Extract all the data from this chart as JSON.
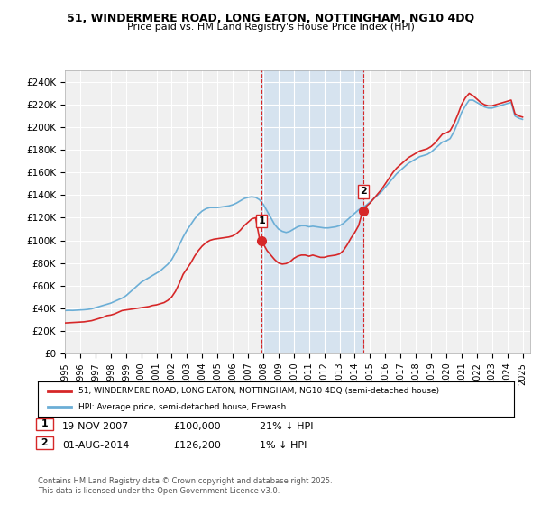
{
  "title_line1": "51, WINDERMERE ROAD, LONG EATON, NOTTINGHAM, NG10 4DQ",
  "title_line2": "Price paid vs. HM Land Registry's House Price Index (HPI)",
  "ylabel_ticks": [
    "£0",
    "£20K",
    "£40K",
    "£60K",
    "£80K",
    "£100K",
    "£120K",
    "£140K",
    "£160K",
    "£180K",
    "£200K",
    "£220K",
    "£240K"
  ],
  "ytick_values": [
    0,
    20000,
    40000,
    60000,
    80000,
    100000,
    120000,
    140000,
    160000,
    180000,
    200000,
    220000,
    240000
  ],
  "ylim": [
    0,
    250000
  ],
  "xlim_start": 1995.0,
  "xlim_end": 2025.5,
  "xtick_labels": [
    "1995",
    "1996",
    "1997",
    "1998",
    "1999",
    "2000",
    "2001",
    "2002",
    "2003",
    "2004",
    "2005",
    "2006",
    "2007",
    "2008",
    "2009",
    "2010",
    "2011",
    "2012",
    "2013",
    "2014",
    "2015",
    "2016",
    "2017",
    "2018",
    "2019",
    "2020",
    "2021",
    "2022",
    "2023",
    "2024",
    "2025"
  ],
  "marker1_x": 2007.89,
  "marker1_y": 100000,
  "marker1_label": "1",
  "marker1_date": "19-NOV-2007",
  "marker1_price": "£100,000",
  "marker1_hpi": "21% ↓ HPI",
  "marker2_x": 2014.58,
  "marker2_y": 126200,
  "marker2_label": "2",
  "marker2_date": "01-AUG-2014",
  "marker2_price": "£126,200",
  "marker2_hpi": "1% ↓ HPI",
  "hpi_color": "#6baed6",
  "price_color": "#d62728",
  "shaded_color": "#c6dbef",
  "legend_label_red": "51, WINDERMERE ROAD, LONG EATON, NOTTINGHAM, NG10 4DQ (semi-detached house)",
  "legend_label_blue": "HPI: Average price, semi-detached house, Erewash",
  "footnote": "Contains HM Land Registry data © Crown copyright and database right 2025.\nThis data is licensed under the Open Government Licence v3.0.",
  "background_color": "#ffffff",
  "plot_bg_color": "#f0f0f0",
  "hpi_data_x": [
    1995.0,
    1995.25,
    1995.5,
    1995.75,
    1996.0,
    1996.25,
    1996.5,
    1996.75,
    1997.0,
    1997.25,
    1997.5,
    1997.75,
    1998.0,
    1998.25,
    1998.5,
    1998.75,
    1999.0,
    1999.25,
    1999.5,
    1999.75,
    2000.0,
    2000.25,
    2000.5,
    2000.75,
    2001.0,
    2001.25,
    2001.5,
    2001.75,
    2002.0,
    2002.25,
    2002.5,
    2002.75,
    2003.0,
    2003.25,
    2003.5,
    2003.75,
    2004.0,
    2004.25,
    2004.5,
    2004.75,
    2005.0,
    2005.25,
    2005.5,
    2005.75,
    2006.0,
    2006.25,
    2006.5,
    2006.75,
    2007.0,
    2007.25,
    2007.5,
    2007.75,
    2008.0,
    2008.25,
    2008.5,
    2008.75,
    2009.0,
    2009.25,
    2009.5,
    2009.75,
    2010.0,
    2010.25,
    2010.5,
    2010.75,
    2011.0,
    2011.25,
    2011.5,
    2011.75,
    2012.0,
    2012.25,
    2012.5,
    2012.75,
    2013.0,
    2013.25,
    2013.5,
    2013.75,
    2014.0,
    2014.25,
    2014.5,
    2014.75,
    2015.0,
    2015.25,
    2015.5,
    2015.75,
    2016.0,
    2016.25,
    2016.5,
    2016.75,
    2017.0,
    2017.25,
    2017.5,
    2017.75,
    2018.0,
    2018.25,
    2018.5,
    2018.75,
    2019.0,
    2019.25,
    2019.5,
    2019.75,
    2020.0,
    2020.25,
    2020.5,
    2020.75,
    2021.0,
    2021.25,
    2021.5,
    2021.75,
    2022.0,
    2022.25,
    2022.5,
    2022.75,
    2023.0,
    2023.25,
    2023.5,
    2023.75,
    2024.0,
    2024.25,
    2024.5,
    2024.75,
    2025.0
  ],
  "hpi_data_y": [
    38000,
    38200,
    38100,
    38300,
    38500,
    38700,
    39000,
    39500,
    40500,
    41500,
    42500,
    43500,
    44500,
    46000,
    47500,
    49000,
    51000,
    54000,
    57000,
    60000,
    63000,
    65000,
    67000,
    69000,
    71000,
    73000,
    76000,
    79000,
    83000,
    89000,
    96000,
    103000,
    109000,
    114000,
    119000,
    123000,
    126000,
    128000,
    129000,
    129000,
    129000,
    129500,
    130000,
    130500,
    131500,
    133000,
    135000,
    137000,
    138000,
    138500,
    138000,
    136000,
    132000,
    126000,
    120000,
    114000,
    110000,
    108000,
    107000,
    108000,
    110000,
    112000,
    113000,
    113000,
    112000,
    112500,
    112000,
    111500,
    111000,
    111000,
    111500,
    112000,
    113000,
    115000,
    118000,
    121000,
    124000,
    127000,
    129000,
    131000,
    134000,
    137000,
    140000,
    143000,
    147000,
    151000,
    155000,
    159000,
    162000,
    165000,
    168000,
    170000,
    172000,
    174000,
    175000,
    176000,
    178000,
    181000,
    184000,
    187000,
    188000,
    190000,
    196000,
    204000,
    213000,
    219000,
    224000,
    224000,
    222000,
    220000,
    218000,
    217000,
    217000,
    218000,
    219000,
    220000,
    221000,
    222000,
    210000,
    208000,
    207000
  ],
  "price_data_x": [
    1995.0,
    1995.25,
    1995.5,
    1995.75,
    1996.0,
    1996.25,
    1996.5,
    1996.75,
    1997.0,
    1997.25,
    1997.5,
    1997.75,
    1998.0,
    1998.25,
    1998.5,
    1998.75,
    1999.0,
    1999.25,
    1999.5,
    1999.75,
    2000.0,
    2000.25,
    2000.5,
    2000.75,
    2001.0,
    2001.25,
    2001.5,
    2001.75,
    2002.0,
    2002.25,
    2002.5,
    2002.75,
    2003.0,
    2003.25,
    2003.5,
    2003.75,
    2004.0,
    2004.25,
    2004.5,
    2004.75,
    2005.0,
    2005.25,
    2005.5,
    2005.75,
    2006.0,
    2006.25,
    2006.5,
    2006.75,
    2007.0,
    2007.25,
    2007.5,
    2007.75,
    2008.0,
    2008.25,
    2008.5,
    2008.75,
    2009.0,
    2009.25,
    2009.5,
    2009.75,
    2010.0,
    2010.25,
    2010.5,
    2010.75,
    2011.0,
    2011.25,
    2011.5,
    2011.75,
    2012.0,
    2012.25,
    2012.5,
    2012.75,
    2013.0,
    2013.25,
    2013.5,
    2013.75,
    2014.0,
    2014.25,
    2014.5,
    2014.75,
    2015.0,
    2015.25,
    2015.5,
    2015.75,
    2016.0,
    2016.25,
    2016.5,
    2016.75,
    2017.0,
    2017.25,
    2017.5,
    2017.75,
    2018.0,
    2018.25,
    2018.5,
    2018.75,
    2019.0,
    2019.25,
    2019.5,
    2019.75,
    2020.0,
    2020.25,
    2020.5,
    2020.75,
    2021.0,
    2021.25,
    2021.5,
    2021.75,
    2022.0,
    2022.25,
    2022.5,
    2022.75,
    2023.0,
    2023.25,
    2023.5,
    2023.75,
    2024.0,
    2024.25,
    2024.5,
    2024.75,
    2025.0
  ],
  "price_data_y": [
    27000,
    27200,
    27400,
    27600,
    27800,
    28000,
    28500,
    29000,
    30000,
    31000,
    32000,
    33500,
    34000,
    35000,
    36500,
    38000,
    38500,
    39000,
    39500,
    40000,
    40500,
    41000,
    41500,
    42500,
    43000,
    44000,
    45000,
    47000,
    50000,
    55000,
    62000,
    70000,
    75000,
    80000,
    86000,
    91000,
    95000,
    98000,
    100000,
    101000,
    101500,
    102000,
    102500,
    103000,
    104000,
    106000,
    109000,
    113000,
    116000,
    119000,
    120000,
    102000,
    97000,
    91000,
    87000,
    83000,
    80000,
    79000,
    79500,
    81000,
    84000,
    86000,
    87000,
    87000,
    86000,
    87000,
    86000,
    85000,
    85000,
    86000,
    86500,
    87000,
    88000,
    91000,
    96000,
    102000,
    107000,
    113000,
    125000,
    130000,
    133000,
    137000,
    141000,
    145000,
    150000,
    155000,
    160000,
    164000,
    167000,
    170000,
    173000,
    175000,
    177000,
    179000,
    180000,
    181000,
    183000,
    186000,
    190000,
    194000,
    195000,
    197000,
    203000,
    211000,
    220000,
    226000,
    230000,
    228000,
    225000,
    222000,
    220000,
    219000,
    219000,
    220000,
    221000,
    222000,
    223000,
    224000,
    212000,
    210000,
    209000
  ]
}
